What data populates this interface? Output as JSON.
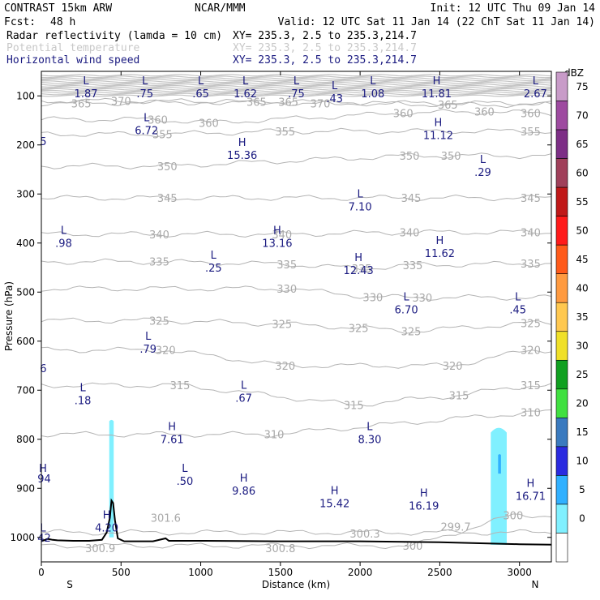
{
  "header": {
    "title": "CONTRAST 15km ARW",
    "center": "NCAR/MMM",
    "init": "Init: 12 UTC Thu 09 Jan 14",
    "fcst_label": "Fcst:",
    "fcst_value": "48 h",
    "valid": "Valid: 12 UTC Sat 11 Jan 14 (22 ChT Sat 11 Jan 14)",
    "fields": [
      {
        "name": "Radar reflectivity (lamda = 10 cm)",
        "xy": "XY= 235.3,  2.5 to 235.3,214.7",
        "color": "#000000"
      },
      {
        "name": "Potential temperature",
        "xy": "XY= 235.3,  2.5 to 235.3,214.7",
        "color": "#c8c8c8"
      },
      {
        "name": "Horizontal wind speed",
        "xy": "XY= 235.3,  2.5 to 235.3,214.7",
        "color": "#1a1a80"
      }
    ]
  },
  "chart_data": {
    "type": "cross-section",
    "title": "Vertical cross-section",
    "xlabel": "Distance (km)",
    "ylabel": "Pressure (hPa)",
    "xlim": [
      0,
      3200
    ],
    "ylim": [
      1050,
      50
    ],
    "x_ticks": [
      0,
      500,
      1000,
      1500,
      2000,
      2500,
      3000
    ],
    "y_ticks": [
      100,
      200,
      300,
      400,
      500,
      600,
      700,
      800,
      900,
      1000
    ],
    "x_end_labels": {
      "left": "S",
      "right": "N"
    },
    "colorbar": {
      "units": "dBZ",
      "levels": [
        {
          "value": "75",
          "color": "#c89bc8"
        },
        {
          "value": "70",
          "color": "#9e4aa0"
        },
        {
          "value": "65",
          "color": "#7d2e86"
        },
        {
          "value": "60",
          "color": "#a0405a"
        },
        {
          "value": "55",
          "color": "#c01818"
        },
        {
          "value": "50",
          "color": "#ff1a1a"
        },
        {
          "value": "45",
          "color": "#ff5a1a"
        },
        {
          "value": "40",
          "color": "#ff9a40"
        },
        {
          "value": "35",
          "color": "#ffc850"
        },
        {
          "value": "30",
          "color": "#f0e028"
        },
        {
          "value": "25",
          "color": "#10a020"
        },
        {
          "value": "20",
          "color": "#40e040"
        },
        {
          "value": "15",
          "color": "#3a7abf"
        },
        {
          "value": "10",
          "color": "#2a2ae0"
        },
        {
          "value": "5",
          "color": "#30b0ff"
        },
        {
          "value": "0",
          "color": "#80f0ff"
        },
        {
          "value": "",
          "color": "#ffffff"
        }
      ]
    },
    "theta_isolines": [
      370,
      365,
      360,
      355,
      350,
      345,
      340,
      335,
      330,
      325,
      320,
      315,
      310,
      305,
      300
    ],
    "theta_labels": [
      {
        "text": "365",
        "x": 250,
        "p": 115
      },
      {
        "text": "370",
        "x": 500,
        "p": 110
      },
      {
        "text": "365",
        "x": 1350,
        "p": 112
      },
      {
        "text": "365",
        "x": 1550,
        "p": 112
      },
      {
        "text": "370",
        "x": 1750,
        "p": 115
      },
      {
        "text": "365",
        "x": 2550,
        "p": 118
      },
      {
        "text": "360",
        "x": 730,
        "p": 148
      },
      {
        "text": "360",
        "x": 1050,
        "p": 155
      },
      {
        "text": "360",
        "x": 2270,
        "p": 135
      },
      {
        "text": "360",
        "x": 2780,
        "p": 132
      },
      {
        "text": "360",
        "x": 3070,
        "p": 135
      },
      {
        "text": "355",
        "x": 760,
        "p": 178
      },
      {
        "text": "355",
        "x": 1530,
        "p": 172
      },
      {
        "text": "355",
        "x": 3070,
        "p": 172
      },
      {
        "text": "350",
        "x": 790,
        "p": 243
      },
      {
        "text": "350",
        "x": 2310,
        "p": 222
      },
      {
        "text": "350",
        "x": 2570,
        "p": 222
      },
      {
        "text": "345",
        "x": 790,
        "p": 308
      },
      {
        "text": "345",
        "x": 2320,
        "p": 308
      },
      {
        "text": "345",
        "x": 3070,
        "p": 308
      },
      {
        "text": "340",
        "x": 740,
        "p": 382
      },
      {
        "text": "340",
        "x": 1510,
        "p": 382
      },
      {
        "text": "340",
        "x": 2310,
        "p": 378
      },
      {
        "text": "340",
        "x": 3070,
        "p": 378
      },
      {
        "text": "335",
        "x": 740,
        "p": 438
      },
      {
        "text": "335",
        "x": 1540,
        "p": 443
      },
      {
        "text": "335",
        "x": 2010,
        "p": 452
      },
      {
        "text": "335",
        "x": 2330,
        "p": 445
      },
      {
        "text": "335",
        "x": 3070,
        "p": 442
      },
      {
        "text": "330",
        "x": 1540,
        "p": 493
      },
      {
        "text": "330",
        "x": 2080,
        "p": 510
      },
      {
        "text": "330",
        "x": 2390,
        "p": 511
      },
      {
        "text": "325",
        "x": 740,
        "p": 558
      },
      {
        "text": "325",
        "x": 1510,
        "p": 565
      },
      {
        "text": "325",
        "x": 1990,
        "p": 573
      },
      {
        "text": "325",
        "x": 2320,
        "p": 580
      },
      {
        "text": "325",
        "x": 3070,
        "p": 563
      },
      {
        "text": "320",
        "x": 780,
        "p": 618
      },
      {
        "text": "320",
        "x": 1530,
        "p": 650
      },
      {
        "text": "320",
        "x": 2580,
        "p": 650
      },
      {
        "text": "320",
        "x": 3070,
        "p": 618
      },
      {
        "text": "315",
        "x": 870,
        "p": 690
      },
      {
        "text": "315",
        "x": 1960,
        "p": 730
      },
      {
        "text": "315",
        "x": 2620,
        "p": 710
      },
      {
        "text": "315",
        "x": 3070,
        "p": 690
      },
      {
        "text": "310",
        "x": 1460,
        "p": 790
      },
      {
        "text": "310",
        "x": 3070,
        "p": 745
      },
      {
        "text": "300",
        "x": 2960,
        "p": 955
      },
      {
        "text": "301.6",
        "x": 780,
        "p": 960
      },
      {
        "text": "300.9",
        "x": 370,
        "p": 1022
      },
      {
        "text": "300.8",
        "x": 1500,
        "p": 1022
      },
      {
        "text": "300.3",
        "x": 2030,
        "p": 992
      },
      {
        "text": "300",
        "x": 2330,
        "p": 1017
      },
      {
        "text": "299.7",
        "x": 2600,
        "p": 978
      }
    ],
    "wind_extrema": [
      {
        "kind": "L",
        "value": "1.87",
        "x": 280,
        "p": 80
      },
      {
        "kind": "L",
        "value": ".75",
        "x": 650,
        "p": 80
      },
      {
        "kind": "L",
        "value": ".65",
        "x": 1000,
        "p": 80
      },
      {
        "kind": "L",
        "value": "1.62",
        "x": 1280,
        "p": 80
      },
      {
        "kind": "L",
        "value": ".75",
        "x": 1600,
        "p": 80
      },
      {
        "kind": "L",
        "value": ".43",
        "x": 1840,
        "p": 90
      },
      {
        "kind": "L",
        "value": "1.08",
        "x": 2080,
        "p": 80
      },
      {
        "kind": "H",
        "value": "11.81",
        "x": 2480,
        "p": 80
      },
      {
        "kind": "L",
        "value": "2.67",
        "x": 3100,
        "p": 80
      },
      {
        "kind": "L",
        "value": "6.72",
        "x": 660,
        "p": 155
      },
      {
        "kind": "H",
        "value": "11.12",
        "x": 2490,
        "p": 165
      },
      {
        "kind": "H",
        "value": "15.36",
        "x": 1260,
        "p": 205
      },
      {
        "kind": "L",
        "value": ".29",
        "x": 2770,
        "p": 240
      },
      {
        "kind": "L",
        "value": "7.10",
        "x": 2000,
        "p": 310
      },
      {
        "kind": "L",
        "value": ".98",
        "x": 140,
        "p": 385
      },
      {
        "kind": "H",
        "value": "13.16",
        "x": 1480,
        "p": 385
      },
      {
        "kind": "H",
        "value": "11.62",
        "x": 2500,
        "p": 405
      },
      {
        "kind": "L",
        "value": ".25",
        "x": 1080,
        "p": 435
      },
      {
        "kind": "H",
        "value": "12.43",
        "x": 1990,
        "p": 440
      },
      {
        "kind": "L",
        "value": "6.70",
        "x": 2290,
        "p": 520
      },
      {
        "kind": "L",
        "value": ".45",
        "x": 2990,
        "p": 520
      },
      {
        "kind": "L",
        "value": ".79",
        "x": 670,
        "p": 600
      },
      {
        "kind": "L",
        "value": ".18",
        "x": 260,
        "p": 705
      },
      {
        "kind": "L",
        "value": ".67",
        "x": 1270,
        "p": 700
      },
      {
        "kind": "H",
        "value": "7.61",
        "x": 820,
        "p": 785
      },
      {
        "kind": "L",
        "value": "8.30",
        "x": 2060,
        "p": 785
      },
      {
        "kind": "L",
        "value": ".50",
        "x": 900,
        "p": 870
      },
      {
        "kind": "H",
        "value": "9.86",
        "x": 1270,
        "p": 890
      },
      {
        "kind": "H",
        "value": "15.42",
        "x": 1840,
        "p": 915
      },
      {
        "kind": "H",
        "value": "16.19",
        "x": 2400,
        "p": 920
      },
      {
        "kind": "H",
        "value": "16.71",
        "x": 3070,
        "p": 900
      },
      {
        "kind": "H",
        "value": "4.20",
        "x": 410,
        "p": 965
      }
    ],
    "edge_labels": [
      {
        "text": "5",
        "x": 12,
        "p": 192
      },
      {
        "text": "6",
        "x": 12,
        "p": 655
      },
      {
        "text": "H",
        "x": 10,
        "p": 858
      },
      {
        "text": "94",
        "x": 18,
        "p": 880
      },
      {
        "text": "L",
        "x": 10,
        "p": 980
      },
      {
        "text": "42",
        "x": 18,
        "p": 1000
      }
    ],
    "terrain": [
      [
        0,
        1008
      ],
      [
        40,
        1003
      ],
      [
        70,
        1005
      ],
      [
        100,
        1006
      ],
      [
        200,
        1007
      ],
      [
        300,
        1007
      ],
      [
        380,
        1005
      ],
      [
        410,
        990
      ],
      [
        430,
        960
      ],
      [
        440,
        925
      ],
      [
        450,
        930
      ],
      [
        462,
        965
      ],
      [
        480,
        1002
      ],
      [
        520,
        1008
      ],
      [
        700,
        1008
      ],
      [
        780,
        1002
      ],
      [
        800,
        1007
      ],
      [
        1000,
        1007
      ],
      [
        1500,
        1008
      ],
      [
        2000,
        1008
      ],
      [
        2500,
        1010
      ],
      [
        3000,
        1014
      ],
      [
        3200,
        1015
      ]
    ],
    "reflectivity_cells": [
      {
        "x_center": 440,
        "x_width": 28,
        "p_top": 760,
        "p_bottom": 1000,
        "dbz": 0
      },
      {
        "x_center": 2870,
        "x_width": 100,
        "p_top": 775,
        "p_bottom": 1015,
        "dbz": 2
      },
      {
        "x_center": 2875,
        "x_width": 18,
        "p_top": 830,
        "p_bottom": 870,
        "dbz": 7
      }
    ]
  }
}
